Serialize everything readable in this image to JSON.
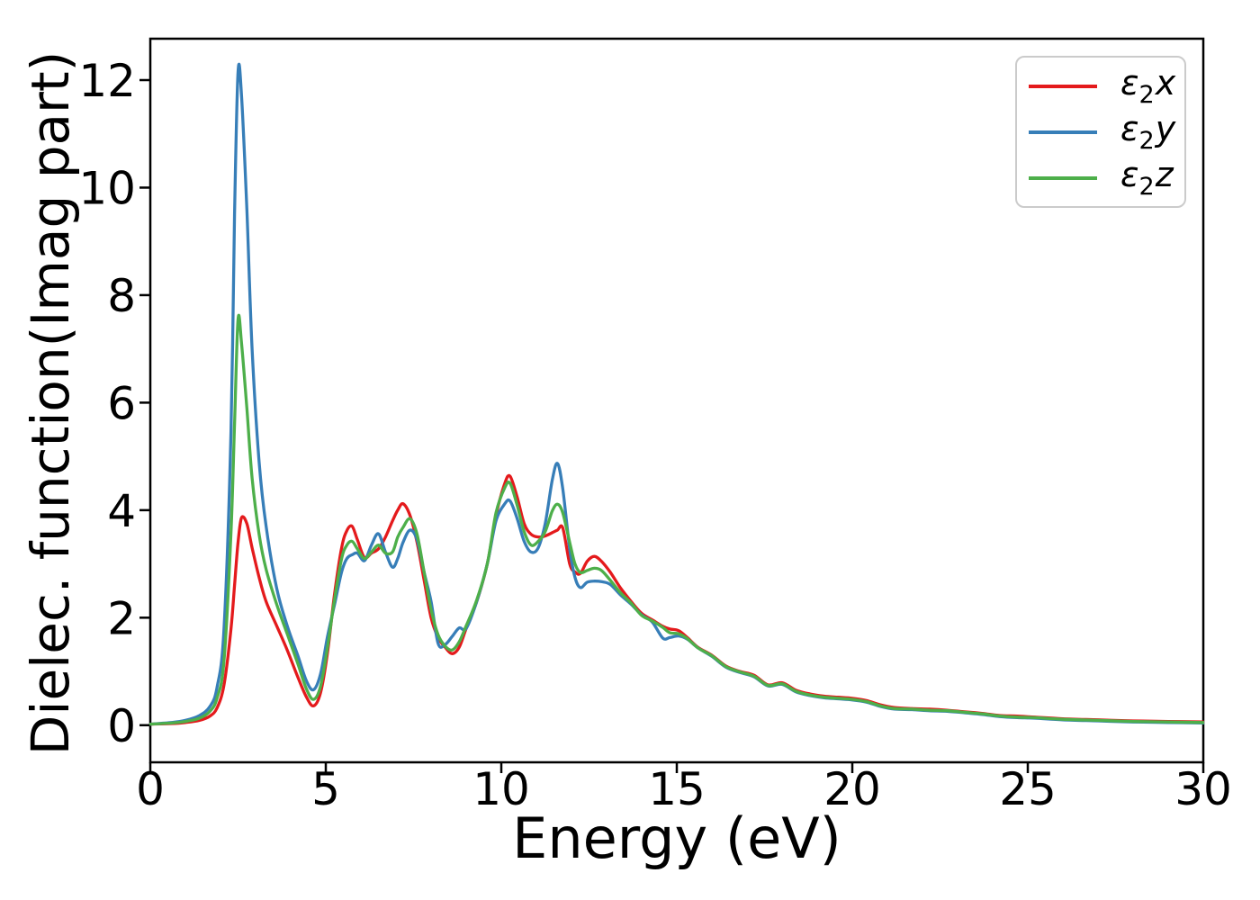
{
  "figure": {
    "xlabel": "Energy (eV)",
    "ylabel": "Dielec. function(Imag part)"
  },
  "legend": {
    "position": "upper right",
    "items": [
      {
        "symbol": "ε",
        "sub": "2",
        "axis": "x",
        "color": "#e41a1c"
      },
      {
        "symbol": "ε",
        "sub": "2",
        "axis": "y",
        "color": "#377eb8"
      },
      {
        "symbol": "ε",
        "sub": "2",
        "axis": "z",
        "color": "#4daf4a"
      }
    ]
  },
  "chart_data": {
    "type": "line",
    "title": "",
    "xlabel": "Energy (eV)",
    "ylabel": "Dielec. function(Imag part)",
    "xlim": [
      0,
      30
    ],
    "ylim": [
      -0.69,
      12.77
    ],
    "xticks": [
      0,
      5,
      10,
      15,
      20,
      25,
      30
    ],
    "yticks": [
      0,
      2,
      4,
      6,
      8,
      10,
      12
    ],
    "grid": false,
    "legend_position": "upper right",
    "x": [
      0,
      0.6,
      1.0,
      1.4,
      1.7,
      1.9,
      2.1,
      2.3,
      2.4,
      2.5,
      2.6,
      2.75,
      2.9,
      3.1,
      3.3,
      3.6,
      3.9,
      4.2,
      4.45,
      4.65,
      4.85,
      5.05,
      5.25,
      5.45,
      5.6,
      5.75,
      5.9,
      6.1,
      6.3,
      6.5,
      6.7,
      6.9,
      7.05,
      7.2,
      7.4,
      7.6,
      7.8,
      8.0,
      8.2,
      8.4,
      8.6,
      8.8,
      9.0,
      9.3,
      9.6,
      9.85,
      10.1,
      10.25,
      10.45,
      10.65,
      10.85,
      11.05,
      11.25,
      11.45,
      11.6,
      11.75,
      11.95,
      12.1,
      12.25,
      12.45,
      12.65,
      12.85,
      13.1,
      13.4,
      13.7,
      14.0,
      14.3,
      14.6,
      14.8,
      15.05,
      15.3,
      15.6,
      16.0,
      16.4,
      16.8,
      17.2,
      17.6,
      18.0,
      18.4,
      18.8,
      19.2,
      19.6,
      20.0,
      20.4,
      20.8,
      21.2,
      21.7,
      22.2,
      22.7,
      23.2,
      23.7,
      24.2,
      24.7,
      25.2,
      26.0,
      27.0,
      28.0,
      29.0,
      30.0
    ],
    "series": [
      {
        "name": "e2x",
        "label": "ε2x",
        "color": "#e41a1c",
        "values": [
          0.02,
          0.03,
          0.05,
          0.09,
          0.17,
          0.32,
          0.75,
          1.8,
          2.6,
          3.4,
          3.86,
          3.75,
          3.3,
          2.75,
          2.3,
          1.85,
          1.4,
          0.9,
          0.52,
          0.36,
          0.6,
          1.35,
          2.45,
          3.3,
          3.62,
          3.7,
          3.45,
          3.12,
          3.2,
          3.28,
          3.5,
          3.8,
          4.0,
          4.12,
          3.9,
          3.4,
          2.7,
          2.0,
          1.63,
          1.45,
          1.33,
          1.45,
          1.8,
          2.3,
          3.0,
          3.9,
          4.5,
          4.63,
          4.25,
          3.75,
          3.55,
          3.5,
          3.52,
          3.58,
          3.63,
          3.67,
          3.0,
          2.85,
          2.82,
          3.05,
          3.14,
          3.05,
          2.85,
          2.55,
          2.3,
          2.08,
          1.96,
          1.84,
          1.79,
          1.76,
          1.63,
          1.45,
          1.3,
          1.1,
          1.0,
          0.93,
          0.75,
          0.79,
          0.65,
          0.58,
          0.54,
          0.52,
          0.5,
          0.46,
          0.38,
          0.33,
          0.31,
          0.3,
          0.28,
          0.25,
          0.22,
          0.18,
          0.17,
          0.15,
          0.12,
          0.1,
          0.08,
          0.07,
          0.06
        ]
      },
      {
        "name": "e2y",
        "label": "ε2y",
        "color": "#377eb8",
        "values": [
          0.02,
          0.05,
          0.09,
          0.18,
          0.35,
          0.7,
          1.8,
          5.5,
          9.5,
          12.15,
          11.7,
          9.6,
          7.0,
          4.9,
          3.7,
          2.55,
          1.85,
          1.3,
          0.82,
          0.66,
          0.95,
          1.65,
          2.25,
          2.85,
          3.1,
          3.17,
          3.2,
          3.06,
          3.35,
          3.56,
          3.22,
          2.94,
          3.1,
          3.4,
          3.63,
          3.45,
          2.85,
          2.3,
          1.52,
          1.5,
          1.65,
          1.81,
          1.8,
          2.3,
          3.0,
          3.8,
          4.12,
          4.17,
          3.85,
          3.42,
          3.22,
          3.3,
          3.75,
          4.55,
          4.87,
          4.4,
          3.28,
          2.75,
          2.56,
          2.66,
          2.68,
          2.67,
          2.62,
          2.42,
          2.25,
          2.05,
          1.92,
          1.62,
          1.63,
          1.66,
          1.6,
          1.44,
          1.28,
          1.08,
          0.98,
          0.9,
          0.73,
          0.76,
          0.62,
          0.55,
          0.51,
          0.49,
          0.47,
          0.43,
          0.35,
          0.3,
          0.29,
          0.27,
          0.26,
          0.23,
          0.2,
          0.16,
          0.14,
          0.13,
          0.1,
          0.08,
          0.06,
          0.05,
          0.04
        ]
      },
      {
        "name": "e2z",
        "label": "ε2z",
        "color": "#4daf4a",
        "values": [
          0.02,
          0.04,
          0.07,
          0.13,
          0.26,
          0.5,
          1.2,
          3.6,
          5.6,
          7.55,
          7.1,
          5.9,
          4.6,
          3.55,
          2.9,
          2.25,
          1.7,
          1.15,
          0.67,
          0.48,
          0.72,
          1.45,
          2.35,
          3.1,
          3.35,
          3.42,
          3.28,
          3.1,
          3.22,
          3.35,
          3.2,
          3.22,
          3.5,
          3.68,
          3.84,
          3.55,
          2.85,
          2.15,
          1.68,
          1.47,
          1.4,
          1.55,
          1.85,
          2.33,
          3.0,
          3.95,
          4.42,
          4.5,
          4.1,
          3.6,
          3.35,
          3.42,
          3.6,
          3.98,
          4.11,
          3.95,
          3.4,
          3.0,
          2.84,
          2.88,
          2.92,
          2.88,
          2.7,
          2.46,
          2.27,
          2.04,
          1.94,
          1.82,
          1.72,
          1.7,
          1.61,
          1.44,
          1.29,
          1.09,
          0.99,
          0.91,
          0.74,
          0.77,
          0.63,
          0.56,
          0.52,
          0.5,
          0.48,
          0.44,
          0.36,
          0.31,
          0.3,
          0.28,
          0.27,
          0.24,
          0.21,
          0.17,
          0.15,
          0.14,
          0.11,
          0.09,
          0.07,
          0.06,
          0.05
        ]
      }
    ]
  }
}
